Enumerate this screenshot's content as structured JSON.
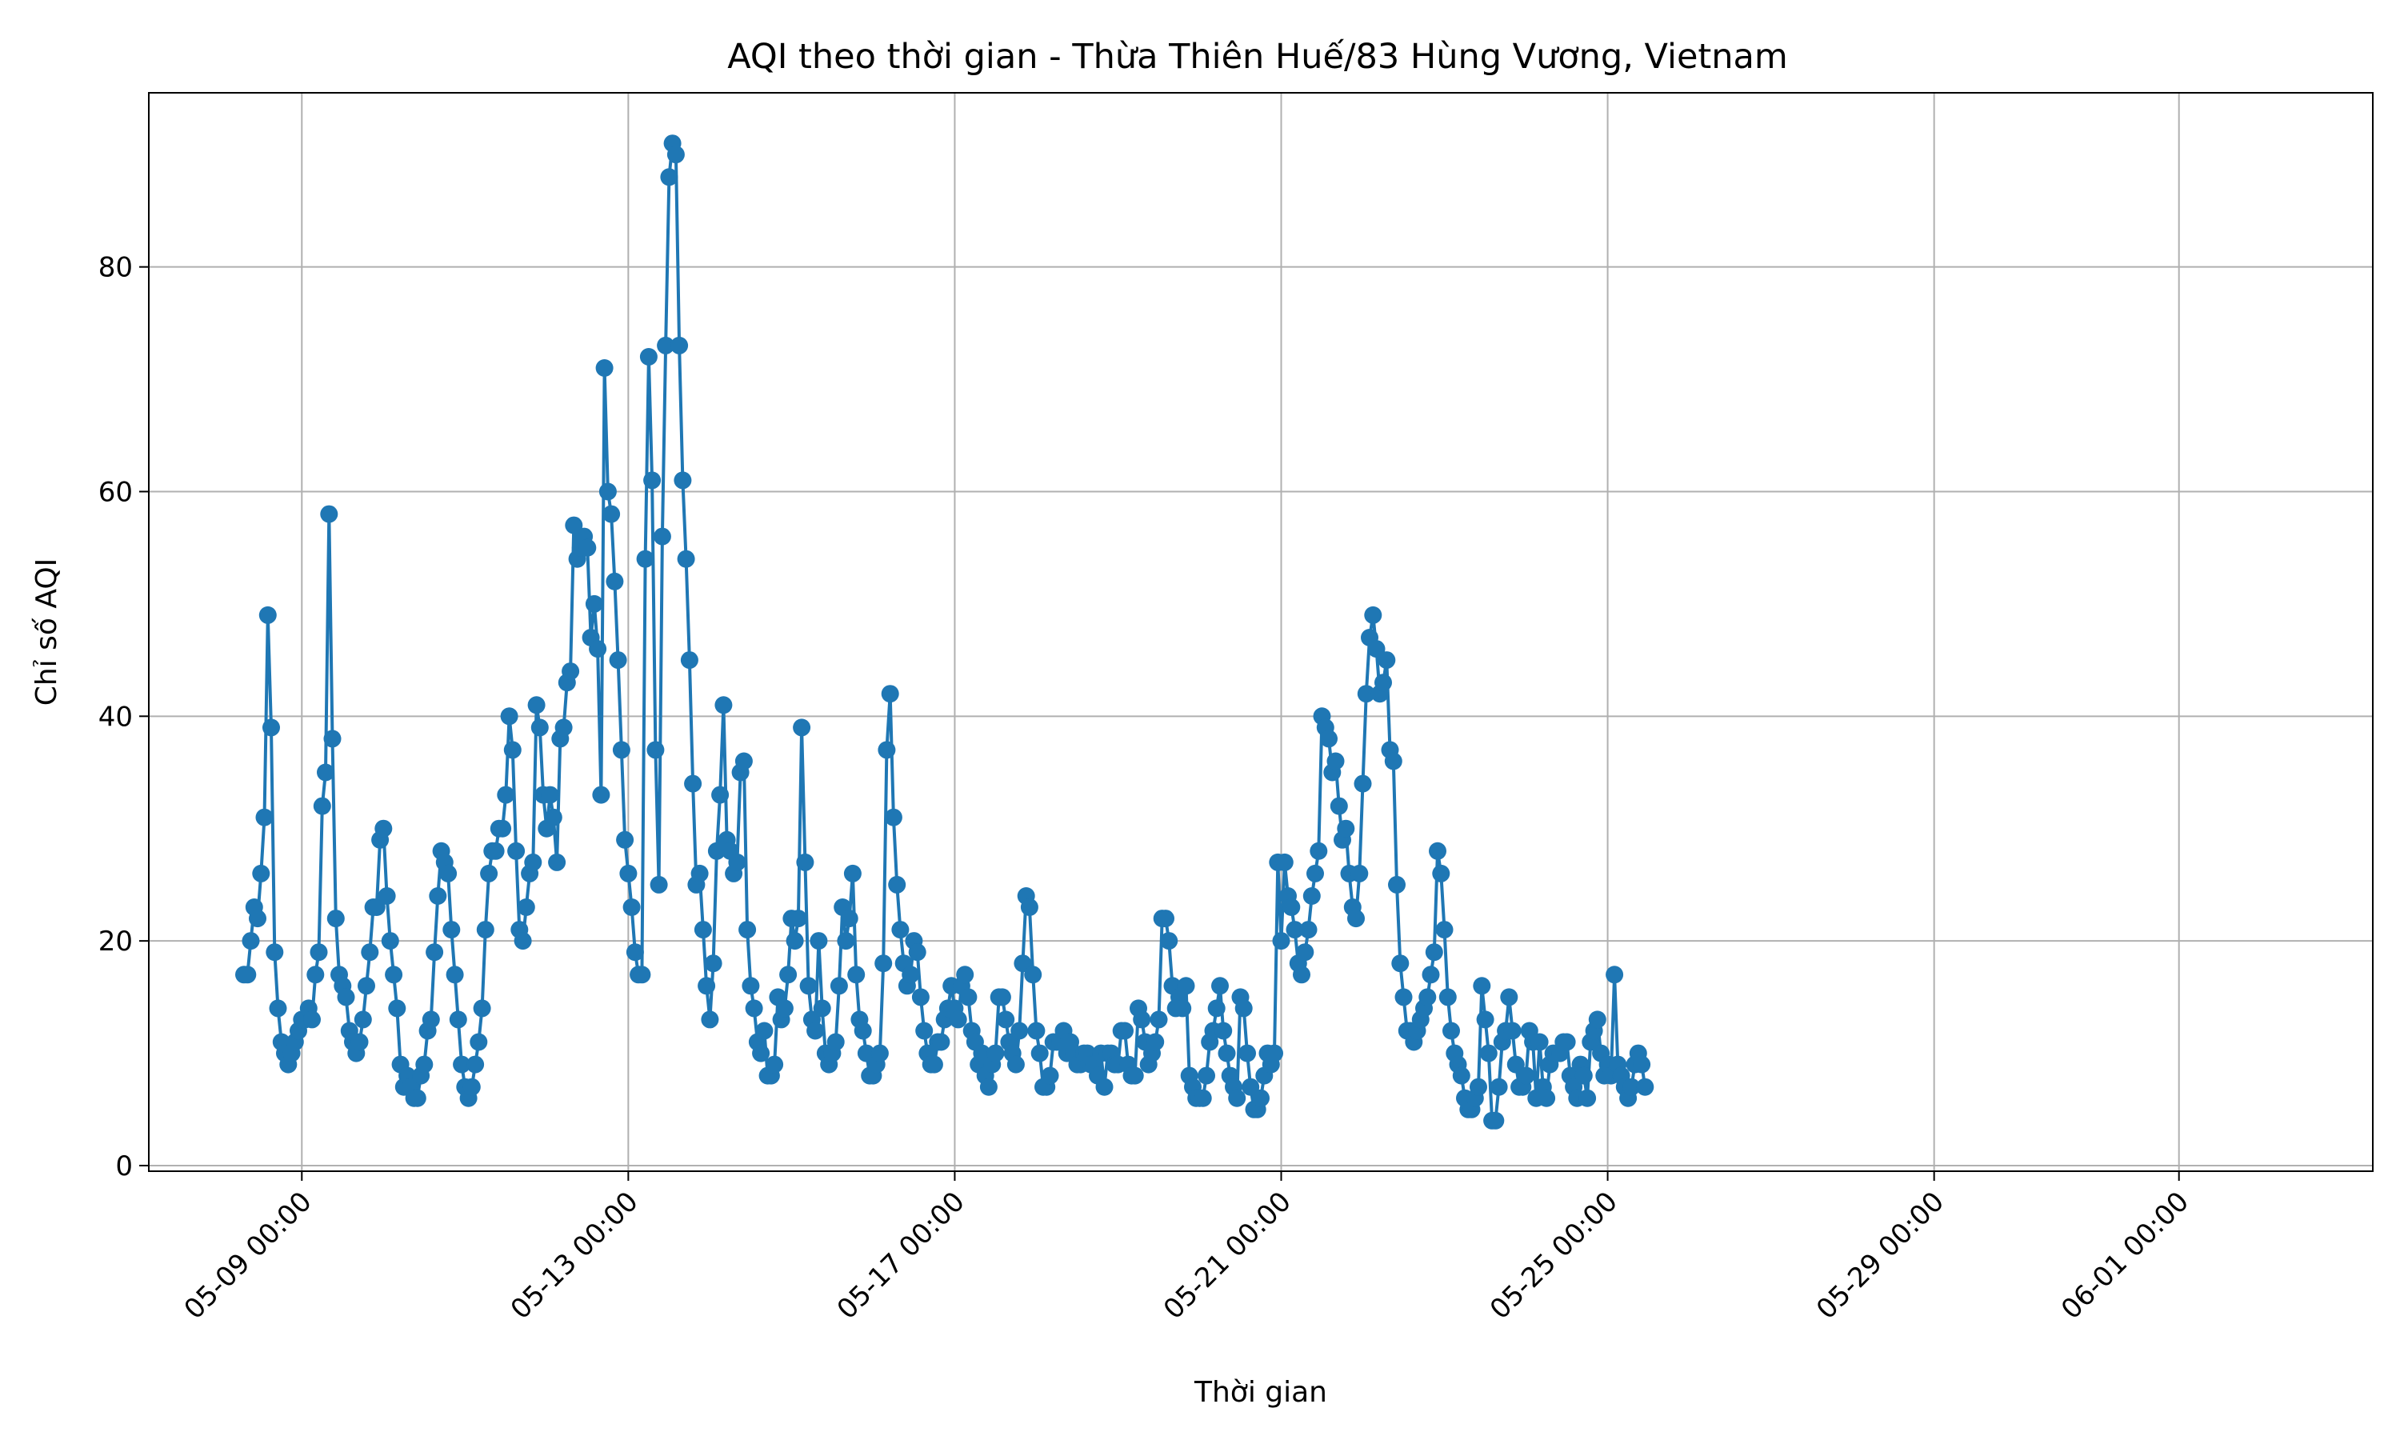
{
  "chart_data": {
    "type": "line",
    "title": "AQI theo thời gian - Thừa Thiên Huế/83 Hùng Vương, Vietnam",
    "xlabel": "Thời gian",
    "ylabel": "Chỉ số AQI",
    "x_range": [
      "2025-05-07T03:00",
      "2025-06-03T09:00"
    ],
    "ylim": [
      -0.5,
      95.5
    ],
    "y_ticks": [
      0,
      20,
      40,
      60,
      80
    ],
    "x_ticks": [
      {
        "date": "2025-05-09T00:00",
        "label": "05-09 00:00"
      },
      {
        "date": "2025-05-13T00:00",
        "label": "05-13 00:00"
      },
      {
        "date": "2025-05-17T00:00",
        "label": "05-17 00:00"
      },
      {
        "date": "2025-05-21T00:00",
        "label": "05-21 00:00"
      },
      {
        "date": "2025-05-25T00:00",
        "label": "05-25 00:00"
      },
      {
        "date": "2025-05-29T00:00",
        "label": "05-29 00:00"
      },
      {
        "date": "2025-06-01T00:00",
        "label": "06-01 00:00"
      }
    ],
    "grid": true,
    "marker": "circle",
    "color": "#1f77b4",
    "series": [
      {
        "start": "2025-05-08T07:00",
        "step_hours": 1,
        "values": [
          17,
          17,
          20,
          23,
          22,
          26,
          31,
          49,
          39,
          19,
          14,
          11,
          10,
          9,
          10,
          11,
          12,
          13,
          13,
          14,
          13,
          17,
          19,
          32,
          35,
          58,
          38,
          22,
          17,
          16,
          15,
          12,
          11,
          10,
          11,
          13,
          16,
          19,
          23,
          23,
          29,
          30,
          24,
          20,
          17,
          14,
          9,
          7,
          8,
          7,
          6,
          6,
          8,
          9,
          12,
          13,
          19,
          24,
          28,
          27,
          26,
          21,
          17,
          13,
          9,
          7,
          6,
          7,
          9,
          11,
          14,
          21,
          26,
          28,
          28,
          30,
          30,
          33,
          40,
          37,
          28,
          21,
          20,
          23,
          26,
          27,
          41,
          39,
          33,
          30,
          33,
          31,
          27,
          38,
          39,
          43,
          44,
          57,
          54,
          55,
          56,
          55,
          47,
          50,
          46,
          33,
          71,
          60,
          58,
          52,
          45,
          37,
          29,
          26,
          23,
          19,
          17,
          17,
          54,
          72,
          61,
          37,
          25,
          56,
          73,
          88,
          91,
          90,
          73,
          61,
          54,
          45,
          34,
          25,
          26,
          21,
          16,
          13,
          18,
          28,
          33,
          41,
          29,
          28,
          26,
          27,
          35,
          36,
          21,
          16,
          14,
          11,
          10,
          12,
          8,
          8,
          9,
          15,
          13,
          14,
          17,
          22,
          20,
          22,
          39,
          27,
          16,
          13,
          12,
          20,
          14,
          10,
          9,
          10,
          11,
          16,
          23,
          20,
          22,
          26,
          17,
          13,
          12,
          10,
          8,
          8,
          9,
          10,
          18,
          37,
          42,
          31,
          25,
          21,
          18,
          16,
          17,
          20,
          19,
          15,
          12,
          10,
          9,
          9,
          11,
          11,
          13,
          14,
          16,
          14,
          13,
          16,
          17,
          15,
          12,
          11,
          9,
          10,
          8,
          7,
          9,
          10,
          15,
          15,
          13,
          11,
          10,
          9,
          12,
          18,
          24,
          23,
          17,
          12,
          10,
          7,
          7,
          8,
          11,
          11,
          11,
          12,
          10,
          11,
          10,
          9,
          9,
          10,
          10,
          9,
          9,
          8,
          10,
          7,
          10,
          10,
          9,
          9,
          12,
          12,
          9,
          8,
          8,
          14,
          13,
          11,
          9,
          10,
          11,
          13,
          22,
          22,
          20,
          16,
          14,
          15,
          14,
          16,
          8,
          7,
          6,
          6,
          6,
          8,
          11,
          12,
          14,
          16,
          12,
          10,
          8,
          7,
          6,
          15,
          14,
          10,
          7,
          5,
          5,
          6,
          8,
          10,
          9,
          10,
          27,
          20,
          27,
          24,
          23,
          21,
          18,
          17,
          19,
          21,
          24,
          26,
          28,
          40,
          39,
          38,
          35,
          36,
          32,
          29,
          30,
          26,
          23,
          22,
          26,
          34,
          42,
          47,
          49,
          46,
          42,
          43,
          45,
          37,
          36,
          25,
          18,
          15,
          12,
          12,
          11,
          12,
          13,
          14,
          15,
          17,
          19,
          28,
          26,
          21,
          15,
          12,
          10,
          9,
          8,
          6,
          5,
          5,
          6,
          7,
          16,
          13,
          10,
          4,
          4,
          7,
          11,
          12,
          15,
          12,
          9,
          7,
          7,
          8,
          12,
          11,
          6,
          11,
          7,
          6,
          9,
          10,
          10,
          10,
          11,
          11,
          8,
          7,
          6,
          9,
          8,
          6,
          11,
          12,
          13,
          10,
          8,
          9,
          8,
          17,
          9,
          8,
          7,
          6,
          7,
          9,
          10,
          9,
          7
        ]
      }
    ]
  }
}
